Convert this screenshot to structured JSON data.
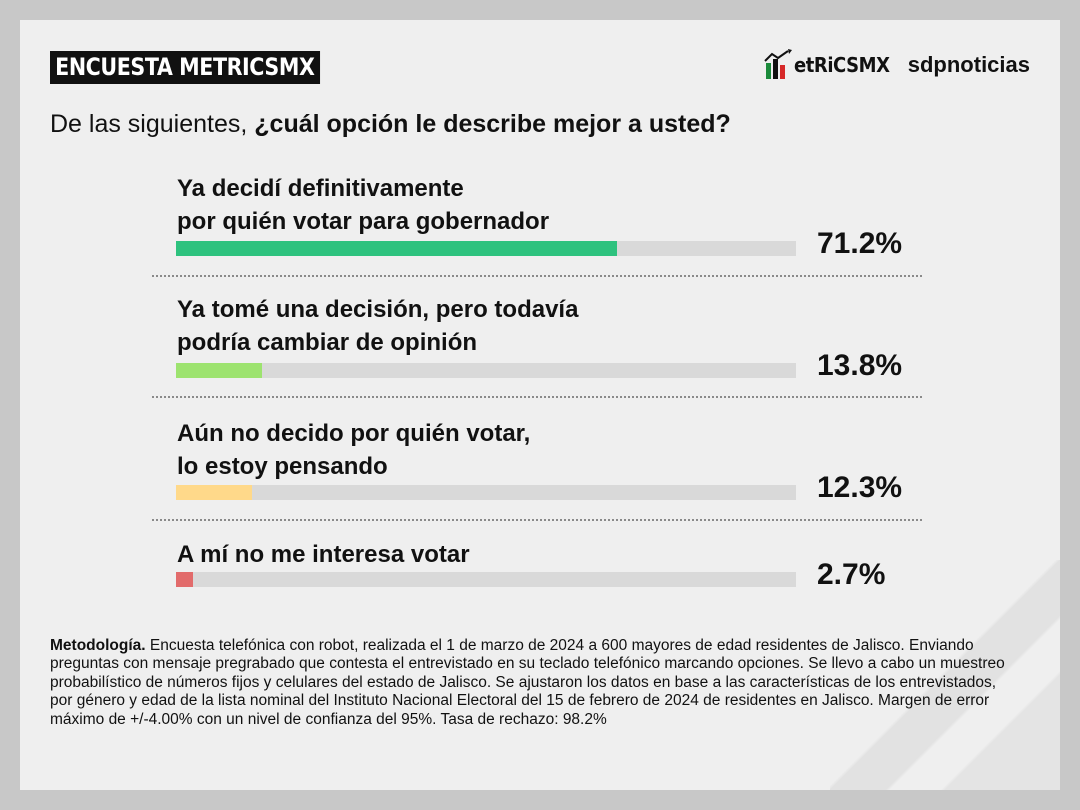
{
  "header": {
    "badge": "ENCUESTA METRICSMX",
    "logo_metrics": "etRiCSMX",
    "logo_sdp": "sdpnoticias"
  },
  "question": {
    "prefix": "De las siguientes, ",
    "emphasis": "¿cuál opción le describe mejor a usted?"
  },
  "chart_data": {
    "type": "bar",
    "orientation": "horizontal",
    "categories": [
      "Ya decidí definitivamente por quién votar para gobernador",
      "Ya tomé una decisión, pero todavía podría cambiar de opinión",
      "Aún no decido por quién votar, lo estoy pensando",
      "A mí no me interesa votar"
    ],
    "label_lines": [
      [
        "Ya decidí definitivamente",
        "por quién votar para gobernador"
      ],
      [
        "Ya tomé una decisión, pero todavía",
        "podría cambiar de opinión"
      ],
      [
        "Aún no decido por quién votar,",
        "lo estoy pensando"
      ],
      [
        "A mí no me interesa votar"
      ]
    ],
    "values": [
      71.2,
      13.8,
      12.3,
      2.7
    ],
    "value_labels": [
      "71.2%",
      "13.8%",
      "12.3%",
      "2.7%"
    ],
    "colors": [
      "#2ec27e",
      "#9de36f",
      "#ffd98a",
      "#e26b6b"
    ],
    "track_color": "#d9d9d9",
    "xlim": [
      0,
      100
    ],
    "grid": false
  },
  "footer": {
    "label": "Metodología.",
    "text": " Encuesta telefónica con robot, realizada el 1 de marzo de 2024 a 600 mayores de edad residentes de Jalisco. Enviando preguntas con mensaje pregrabado que contesta el entrevistado en su teclado telefónico marcando opciones. Se llevo a cabo un muestreo probabilístico de números fijos y celulares del estado de Jalisco. Se ajustaron los datos en base a las características de los entrevistados, por género y edad de la lista nominal del Instituto Nacional Electoral del 15 de febrero de 2024 de residentes en Jalisco. Margen de error máximo de +/-4.00% con un nivel de confianza del 95%. Tasa de rechazo: 98.2%"
  }
}
